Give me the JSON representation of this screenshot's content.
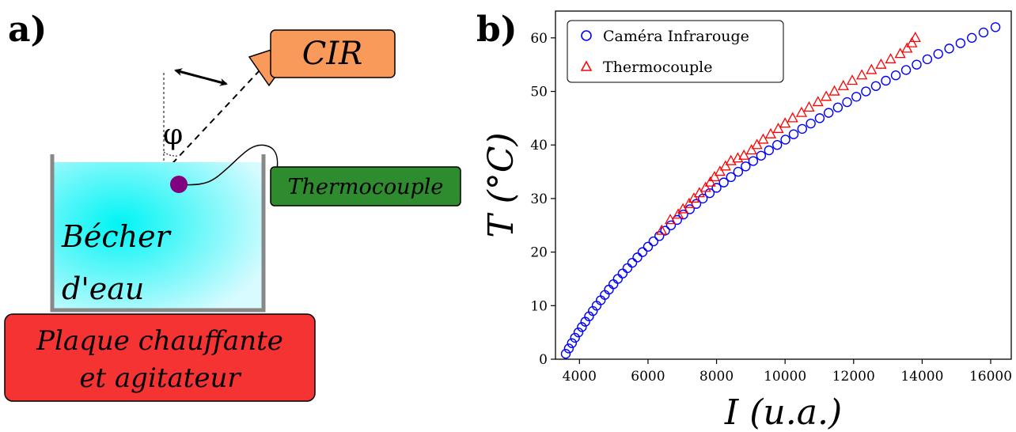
{
  "panel_a": {
    "letter": "a)",
    "cir_label": "CIR",
    "phi_label": "φ",
    "thermocouple_label": "Thermocouple",
    "beaker_line1": "Bécher",
    "beaker_line2": "d'eau",
    "plate_line1": "Plaque chauffante",
    "plate_line2": "et agitateur",
    "colors": {
      "cir_box": "#f99a5a",
      "thermocouple_box": "#2e8b2e",
      "water_center": "#00f4f4",
      "water_edge": "#d8fbff",
      "plate_box": "#f53333",
      "probe_dot": "#800080",
      "beaker_wall": "#888888"
    }
  },
  "panel_b": {
    "letter": "b)",
    "chart_data": {
      "type": "scatter",
      "xlabel": "I (u.a.)",
      "ylabel": "T (°C)",
      "xlim": [
        3300,
        16600
      ],
      "ylim": [
        0,
        65
      ],
      "xticks": [
        4000,
        6000,
        8000,
        10000,
        12000,
        14000,
        16000
      ],
      "yticks": [
        0,
        10,
        20,
        30,
        40,
        50,
        60
      ],
      "legend_position": "top-left",
      "grid": false,
      "series": [
        {
          "name": "Caméra Infrarouge",
          "marker": "circle",
          "color": "#0000ff",
          "points": [
            [
              3600,
              1
            ],
            [
              3690,
              2
            ],
            [
              3780,
              3
            ],
            [
              3870,
              4
            ],
            [
              3970,
              5
            ],
            [
              4070,
              6
            ],
            [
              4170,
              7
            ],
            [
              4280,
              8
            ],
            [
              4390,
              9
            ],
            [
              4500,
              10
            ],
            [
              4620,
              11
            ],
            [
              4740,
              12
            ],
            [
              4860,
              13
            ],
            [
              4990,
              14
            ],
            [
              5120,
              15
            ],
            [
              5260,
              16
            ],
            [
              5400,
              17
            ],
            [
              5540,
              18
            ],
            [
              5690,
              19
            ],
            [
              5840,
              20
            ],
            [
              6000,
              21
            ],
            [
              6160,
              22
            ],
            [
              6330,
              23
            ],
            [
              6500,
              24
            ],
            [
              6670,
              25
            ],
            [
              6850,
              26
            ],
            [
              7030,
              27
            ],
            [
              7220,
              28
            ],
            [
              7410,
              29
            ],
            [
              7600,
              30
            ],
            [
              7800,
              31
            ],
            [
              8000,
              32
            ],
            [
              8210,
              33
            ],
            [
              8420,
              34
            ],
            [
              8630,
              35
            ],
            [
              8850,
              36
            ],
            [
              9070,
              37
            ],
            [
              9300,
              38
            ],
            [
              9530,
              39
            ],
            [
              9770,
              40
            ],
            [
              10010,
              41
            ],
            [
              10250,
              42
            ],
            [
              10500,
              43
            ],
            [
              10750,
              44
            ],
            [
              11010,
              45
            ],
            [
              11270,
              46
            ],
            [
              11540,
              47
            ],
            [
              11810,
              48
            ],
            [
              12080,
              49
            ],
            [
              12360,
              50
            ],
            [
              12650,
              51
            ],
            [
              12940,
              52
            ],
            [
              13230,
              53
            ],
            [
              13530,
              54
            ],
            [
              13840,
              55
            ],
            [
              14150,
              56
            ],
            [
              14470,
              57
            ],
            [
              14790,
              58
            ],
            [
              15120,
              59
            ],
            [
              15450,
              60
            ],
            [
              15790,
              61
            ],
            [
              16140,
              62
            ]
          ]
        },
        {
          "name": "Thermocouple",
          "marker": "triangle",
          "color": "#ff0000",
          "points": [
            [
              6400,
              24
            ],
            [
              6650,
              26
            ],
            [
              6880,
              27
            ],
            [
              7020,
              28
            ],
            [
              7200,
              29
            ],
            [
              7340,
              30
            ],
            [
              7500,
              31
            ],
            [
              7680,
              32
            ],
            [
              7820,
              33
            ],
            [
              7940,
              34
            ],
            [
              8100,
              35
            ],
            [
              8260,
              36
            ],
            [
              8420,
              37
            ],
            [
              8620,
              37.5
            ],
            [
              8800,
              38
            ],
            [
              9020,
              39
            ],
            [
              9180,
              40
            ],
            [
              9360,
              41
            ],
            [
              9580,
              42
            ],
            [
              9800,
              43
            ],
            [
              10000,
              44
            ],
            [
              10220,
              45
            ],
            [
              10480,
              46
            ],
            [
              10700,
              47
            ],
            [
              10960,
              48
            ],
            [
              11200,
              49
            ],
            [
              11440,
              50
            ],
            [
              11700,
              51
            ],
            [
              11960,
              52
            ],
            [
              12240,
              53
            ],
            [
              12520,
              54
            ],
            [
              12800,
              55
            ],
            [
              13080,
              56
            ],
            [
              13360,
              57
            ],
            [
              13560,
              58
            ],
            [
              13700,
              59
            ],
            [
              13800,
              60
            ]
          ]
        }
      ]
    }
  }
}
